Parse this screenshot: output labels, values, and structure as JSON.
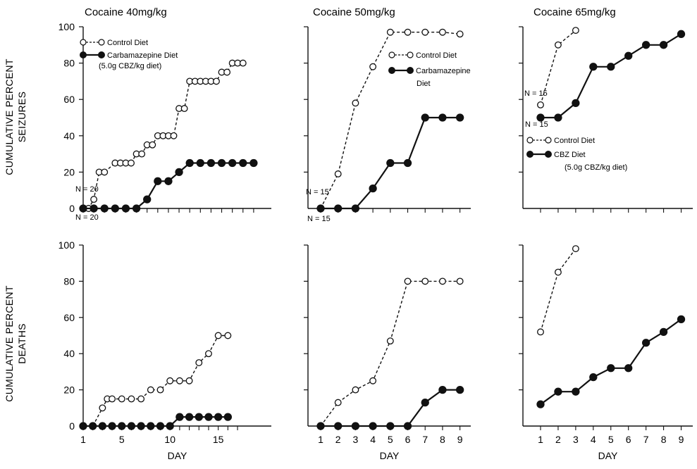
{
  "figure": {
    "row_labels": {
      "seizures": [
        "CUMULATIVE PERCENT",
        "SEIZURES"
      ],
      "deaths": [
        "CUMULATIVE PERCENT",
        "DEATHS"
      ]
    },
    "x_axis_label": "DAY"
  },
  "chart_data": [
    {
      "type": "line",
      "title": "Cocaine 40mg/kg",
      "ylabel": "CUMULATIVE PERCENT SEIZURES",
      "xlabel": "",
      "ylim": [
        0,
        100
      ],
      "xlim": [
        1,
        17.8
      ],
      "yticks": [
        0,
        20,
        40,
        60,
        80,
        100
      ],
      "xticks": [],
      "legend": [
        "Control Diet",
        "Carbamazepine Diet",
        "(5.0g CBZ/kg diet)"
      ],
      "annotations": [
        "N = 20",
        "N = 20"
      ],
      "series": [
        {
          "name": "Control Diet",
          "style": "dashed-open",
          "x": [
            1,
            1.5,
            2,
            2.5,
            3,
            4,
            4.5,
            5,
            5.5,
            6,
            6.5,
            7,
            7.5,
            8,
            8.5,
            9,
            9.5,
            10,
            10.5,
            11,
            11.5,
            12,
            12.5,
            13,
            13.5,
            14,
            14.5,
            15,
            15.5,
            16
          ],
          "y": [
            0,
            0,
            5,
            20,
            20,
            25,
            25,
            25,
            25,
            30,
            30,
            35,
            35,
            40,
            40,
            40,
            40,
            55,
            55,
            70,
            70,
            70,
            70,
            70,
            70,
            75,
            75,
            80,
            80,
            80
          ]
        },
        {
          "name": "Carbamazepine Diet",
          "style": "solid-filled",
          "x": [
            1,
            2,
            3,
            4,
            5,
            6,
            7,
            8,
            9,
            10,
            11,
            12,
            13,
            14,
            15,
            16,
            17
          ],
          "y": [
            0,
            0,
            0,
            0,
            0,
            0,
            5,
            15,
            15,
            20,
            25,
            25,
            25,
            25,
            25,
            25,
            25
          ]
        }
      ]
    },
    {
      "type": "line",
      "title": "Cocaine 50mg/kg",
      "ylim": [
        0,
        100
      ],
      "xlim": [
        1,
        9.5
      ],
      "yticks": [],
      "xticks": [],
      "legend": [
        "Control Diet",
        "Carbamazepine",
        "Diet"
      ],
      "annotations": [
        "N = 15",
        "N = 15"
      ],
      "series": [
        {
          "name": "Control Diet",
          "style": "dashed-open",
          "x": [
            1,
            2,
            3,
            4,
            5,
            6,
            7,
            8,
            9
          ],
          "y": [
            0,
            19,
            58,
            78,
            97,
            97,
            97,
            97,
            96
          ]
        },
        {
          "name": "Carbamazepine Diet",
          "style": "solid-filled",
          "x": [
            1,
            2,
            3,
            4,
            5,
            6,
            7,
            8,
            9
          ],
          "y": [
            0,
            0,
            0,
            11,
            25,
            25,
            50,
            50,
            50
          ]
        }
      ]
    },
    {
      "type": "line",
      "title": "Cocaine 65mg/kg",
      "ylim": [
        0,
        100
      ],
      "xlim": [
        1,
        9.5
      ],
      "yticks": [],
      "xticks": [],
      "legend": [
        "Control Diet",
        "CBZ Diet",
        "(5.0g CBZ/kg diet)"
      ],
      "annotations": [
        "N = 15",
        "N = 15"
      ],
      "series": [
        {
          "name": "Control Diet",
          "style": "dashed-open",
          "x": [
            1,
            2,
            3
          ],
          "y": [
            57,
            90,
            98
          ]
        },
        {
          "name": "CBZ Diet",
          "style": "solid-filled",
          "x": [
            1,
            2,
            3,
            4,
            5,
            6,
            7,
            8,
            9
          ],
          "y": [
            50,
            50,
            58,
            78,
            78,
            84,
            90,
            90,
            96
          ]
        }
      ]
    },
    {
      "type": "line",
      "title": "",
      "ylabel": "CUMULATIVE PERCENT DEATHS",
      "xlabel": "DAY",
      "ylim": [
        0,
        100
      ],
      "xlim": [
        1,
        17.8
      ],
      "yticks": [
        0,
        20,
        40,
        60,
        80,
        100
      ],
      "xticks": [
        1,
        5,
        10,
        15
      ],
      "series": [
        {
          "name": "Control Diet",
          "style": "dashed-open",
          "x": [
            1,
            2,
            3,
            3.5,
            4,
            5,
            6,
            7,
            8,
            9,
            10,
            11,
            12,
            13,
            14,
            15,
            16
          ],
          "y": [
            0,
            0,
            10,
            15,
            15,
            15,
            15,
            15,
            20,
            20,
            25,
            25,
            25,
            35,
            40,
            50,
            50
          ]
        },
        {
          "name": "Carbamazepine Diet",
          "style": "solid-filled",
          "x": [
            1,
            2,
            3,
            4,
            5,
            6,
            7,
            8,
            9,
            10,
            11,
            12,
            13,
            14,
            15,
            16
          ],
          "y": [
            0,
            0,
            0,
            0,
            0,
            0,
            0,
            0,
            0,
            0,
            5,
            5,
            5,
            5,
            5,
            5
          ]
        }
      ]
    },
    {
      "type": "line",
      "title": "",
      "xlabel": "DAY",
      "ylim": [
        0,
        100
      ],
      "xlim": [
        1,
        9.5
      ],
      "yticks": [],
      "xticks": [
        1,
        2,
        3,
        4,
        5,
        6,
        7,
        8,
        9
      ],
      "series": [
        {
          "name": "Control Diet",
          "style": "dashed-open",
          "x": [
            1,
            2,
            3,
            4,
            5,
            6,
            7,
            8,
            9
          ],
          "y": [
            0,
            13,
            20,
            25,
            47,
            80,
            80,
            80,
            80
          ]
        },
        {
          "name": "Carbamazepine Diet",
          "style": "solid-filled",
          "x": [
            1,
            2,
            3,
            4,
            5,
            6,
            7,
            8,
            9
          ],
          "y": [
            0,
            0,
            0,
            0,
            0,
            0,
            13,
            20,
            20
          ]
        }
      ]
    },
    {
      "type": "line",
      "title": "",
      "xlabel": "DAY",
      "ylim": [
        0,
        100
      ],
      "xlim": [
        1,
        9.5
      ],
      "yticks": [],
      "xticks": [
        1,
        2,
        3,
        4,
        5,
        6,
        7,
        8,
        9
      ],
      "series": [
        {
          "name": "Control Diet",
          "style": "dashed-open",
          "x": [
            1,
            2,
            3
          ],
          "y": [
            52,
            85,
            98
          ]
        },
        {
          "name": "CBZ Diet",
          "style": "solid-filled",
          "x": [
            1,
            2,
            3,
            4,
            5,
            6,
            7,
            8,
            9
          ],
          "y": [
            12,
            19,
            19,
            27,
            32,
            32,
            46,
            52,
            59
          ]
        }
      ]
    }
  ]
}
